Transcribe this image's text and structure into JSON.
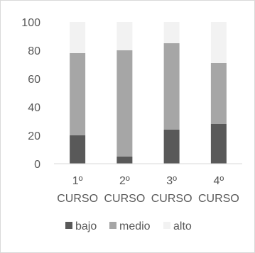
{
  "chart_data": {
    "type": "bar",
    "stacked": true,
    "categories": [
      [
        "1º",
        "CURSO"
      ],
      [
        "2º",
        "CURSO"
      ],
      [
        "3º",
        "CURSO"
      ],
      [
        "4º",
        "CURSO"
      ]
    ],
    "series": [
      {
        "name": "bajo",
        "color": "#595959",
        "values": [
          20,
          5,
          24,
          28
        ]
      },
      {
        "name": "medio",
        "color": "#a6a6a6",
        "values": [
          58,
          75,
          61,
          43
        ]
      },
      {
        "name": "alto",
        "color": "#f2f2f2",
        "values": [
          22,
          20,
          15,
          29
        ]
      }
    ],
    "ylim": [
      0,
      100
    ],
    "yticks": [
      0,
      20,
      40,
      60,
      80,
      100
    ],
    "grid": false,
    "legend": "bottom"
  }
}
